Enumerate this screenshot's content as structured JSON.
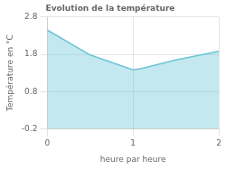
{
  "chart_data": {
    "type": "area",
    "title": "Evolution de la température",
    "xlabel": "heure par heure",
    "ylabel": "Température en °C",
    "x": [
      0,
      0.5,
      1.0,
      1.1,
      1.5,
      2.0
    ],
    "values": [
      2.45,
      1.78,
      1.38,
      1.42,
      1.65,
      1.88
    ],
    "color": "#6cc5d8",
    "xlim": [
      0,
      2
    ],
    "xticks": [
      0,
      1,
      2
    ],
    "ylim": [
      -0.2,
      2.8
    ],
    "yticks": [
      -0.2,
      0.8,
      1.8,
      2.8
    ],
    "grid": true
  }
}
